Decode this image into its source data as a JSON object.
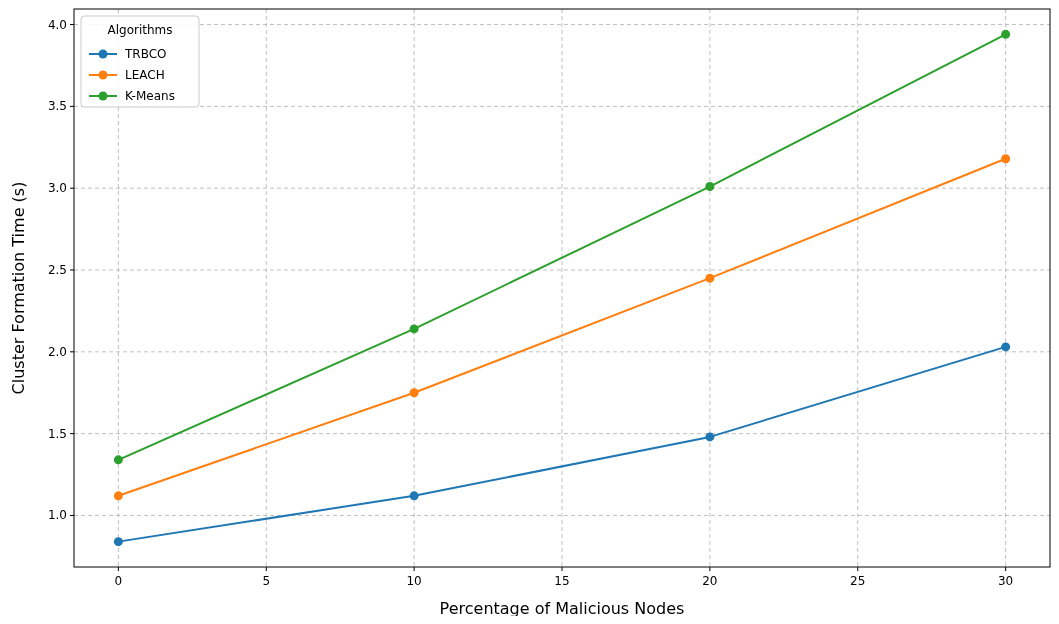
{
  "chart_data": {
    "type": "line",
    "xlabel": "Percentage of Malicious Nodes",
    "ylabel": "Cluster Formation Time (s)",
    "legend_title": "Algorithms",
    "x": [
      0,
      10,
      20,
      30
    ],
    "series": [
      {
        "name": "TRBCO",
        "color": "#1f77b4",
        "values": [
          0.84,
          1.12,
          1.48,
          2.03
        ]
      },
      {
        "name": "LEACH",
        "color": "#ff7f0e",
        "values": [
          1.12,
          1.75,
          2.45,
          3.18
        ]
      },
      {
        "name": "K-Means",
        "color": "#2ca02c",
        "values": [
          1.34,
          2.14,
          3.01,
          3.94
        ]
      }
    ],
    "xlim": [
      -1.5,
      31.5
    ],
    "xticks": [
      0,
      5,
      10,
      15,
      20,
      25,
      30
    ],
    "ylim": [
      0.685,
      4.095
    ],
    "yticks": [
      {
        "value": 1,
        "label": "1.0"
      },
      {
        "value": 1.5,
        "label": "1.5"
      },
      {
        "value": 2,
        "label": "2.0"
      },
      {
        "value": 2.5,
        "label": "2.5"
      },
      {
        "value": 3,
        "label": "3.0"
      },
      {
        "value": 3.5,
        "label": "3.5"
      },
      {
        "value": 4,
        "label": "4.0"
      }
    ],
    "grid": true,
    "legend": "top left",
    "marker": "circle",
    "line_style": "solid"
  }
}
